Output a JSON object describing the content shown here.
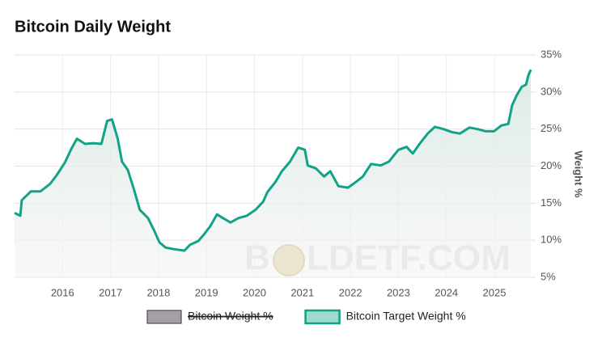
{
  "chart_data": {
    "type": "line",
    "title": "Bitcoin Daily Weight",
    "y_label": "Weight %",
    "watermark": [
      "B",
      "LDETF.COM"
    ],
    "x": [
      2015.0,
      2015.12,
      2015.15,
      2015.34,
      2015.54,
      2015.74,
      2015.88,
      2016.05,
      2016.18,
      2016.3,
      2016.47,
      2016.64,
      2016.81,
      2016.93,
      2017.03,
      2017.15,
      2017.24,
      2017.36,
      2017.49,
      2017.61,
      2017.78,
      2017.91,
      2018.02,
      2018.15,
      2018.32,
      2018.54,
      2018.66,
      2018.83,
      2018.95,
      2019.08,
      2019.22,
      2019.34,
      2019.5,
      2019.67,
      2019.84,
      2020.02,
      2020.18,
      2020.27,
      2020.44,
      2020.57,
      2020.74,
      2020.91,
      2021.05,
      2021.11,
      2021.28,
      2021.45,
      2021.58,
      2021.75,
      2021.95,
      2022.12,
      2022.26,
      2022.43,
      2022.63,
      2022.8,
      2023.0,
      2023.17,
      2023.3,
      2023.44,
      2023.61,
      2023.76,
      2023.94,
      2024.11,
      2024.28,
      2024.48,
      2024.65,
      2024.82,
      2024.99,
      2025.15,
      2025.29,
      2025.37,
      2025.46,
      2025.57,
      2025.66,
      2025.71,
      2025.76
    ],
    "series": [
      {
        "name": "Bitcoin Target Weight %",
        "color": "#12a287",
        "values": [
          13.7,
          13.3,
          15.4,
          16.6,
          16.6,
          17.6,
          18.8,
          20.5,
          22.3,
          23.7,
          23.0,
          23.1,
          23.0,
          26.1,
          26.3,
          23.7,
          20.6,
          19.5,
          16.8,
          14.1,
          13.0,
          11.3,
          9.7,
          9.0,
          8.8,
          8.6,
          9.4,
          9.9,
          10.8,
          11.9,
          13.5,
          13.0,
          12.4,
          13.0,
          13.3,
          14.1,
          15.2,
          16.5,
          17.9,
          19.3,
          20.6,
          22.5,
          22.2,
          20.1,
          19.7,
          18.6,
          19.3,
          17.3,
          17.1,
          17.9,
          18.6,
          20.3,
          20.1,
          20.6,
          22.2,
          22.6,
          21.7,
          23.0,
          24.4,
          25.3,
          25.0,
          24.6,
          24.4,
          25.2,
          25.0,
          24.7,
          24.7,
          25.5,
          25.7,
          28.2,
          29.5,
          30.7,
          31.0,
          32.3,
          33.0
        ]
      }
    ],
    "hidden_series": [
      {
        "name": "Bitcoin Weight %",
        "color": "#a49ea6"
      }
    ],
    "xlim": [
      2015.0,
      2025.86
    ],
    "xticks": [
      2016,
      2017,
      2018,
      2019,
      2020,
      2021,
      2022,
      2023,
      2024,
      2025
    ],
    "ylim": [
      5,
      35
    ],
    "yticks": [
      {
        "value": 5,
        "label": "5%"
      },
      {
        "value": 10,
        "label": "10%"
      },
      {
        "value": 15,
        "label": "15%"
      },
      {
        "value": 20,
        "label": "20%"
      },
      {
        "value": 25,
        "label": "25%"
      },
      {
        "value": 30,
        "label": "30%"
      },
      {
        "value": 35,
        "label": "35%"
      }
    ],
    "grid": true,
    "legend": "bottom"
  }
}
